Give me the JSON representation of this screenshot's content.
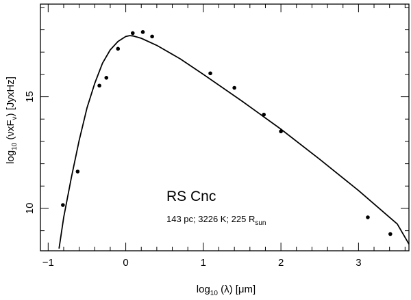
{
  "chart_data": {
    "type": "scatter",
    "xlabel": {
      "prefix": "log",
      "sub": "10",
      "text": " (λ) [μm]"
    },
    "ylabel": {
      "prefix": "log",
      "sub": "10",
      "text1": " (νxF",
      "sub2": "ν",
      "text2": ") [JyxHz]"
    },
    "xlim": [
      -1.1,
      3.65
    ],
    "ylim": [
      8.1,
      19.15
    ],
    "xticks": [
      -1,
      0,
      1,
      2,
      3
    ],
    "xtick_labels": [
      "−1",
      "0",
      "1",
      "2",
      "3"
    ],
    "yticks": [
      10,
      15
    ],
    "ytick_labels": [
      "10",
      "15"
    ],
    "annotation_title": "RS Cnc",
    "annotation_sub_main": "143 pc; 3226 K; 225 R",
    "annotation_sub_subscript": "sun",
    "series": [
      {
        "kind": "points",
        "x": [
          -0.81,
          -0.62,
          -0.34,
          -0.25,
          -0.1,
          0.09,
          0.22,
          0.34,
          1.09,
          1.4,
          1.78,
          2.0,
          3.12,
          3.41
        ],
        "y": [
          10.15,
          11.65,
          15.5,
          15.85,
          17.15,
          17.85,
          17.9,
          17.7,
          16.05,
          15.4,
          14.2,
          13.45,
          9.6,
          8.85
        ]
      },
      {
        "kind": "curve",
        "x": [
          -0.86,
          -0.8,
          -0.7,
          -0.6,
          -0.5,
          -0.4,
          -0.3,
          -0.2,
          -0.1,
          0.0,
          0.05,
          0.1,
          0.2,
          0.4,
          0.7,
          1.0,
          1.5,
          2.0,
          2.5,
          3.0,
          3.5,
          3.65
        ],
        "y": [
          8.2,
          9.6,
          11.4,
          13.05,
          14.5,
          15.6,
          16.5,
          17.1,
          17.48,
          17.7,
          17.74,
          17.72,
          17.62,
          17.3,
          16.7,
          16.0,
          14.8,
          13.55,
          12.2,
          10.8,
          9.3,
          8.4
        ]
      }
    ]
  }
}
